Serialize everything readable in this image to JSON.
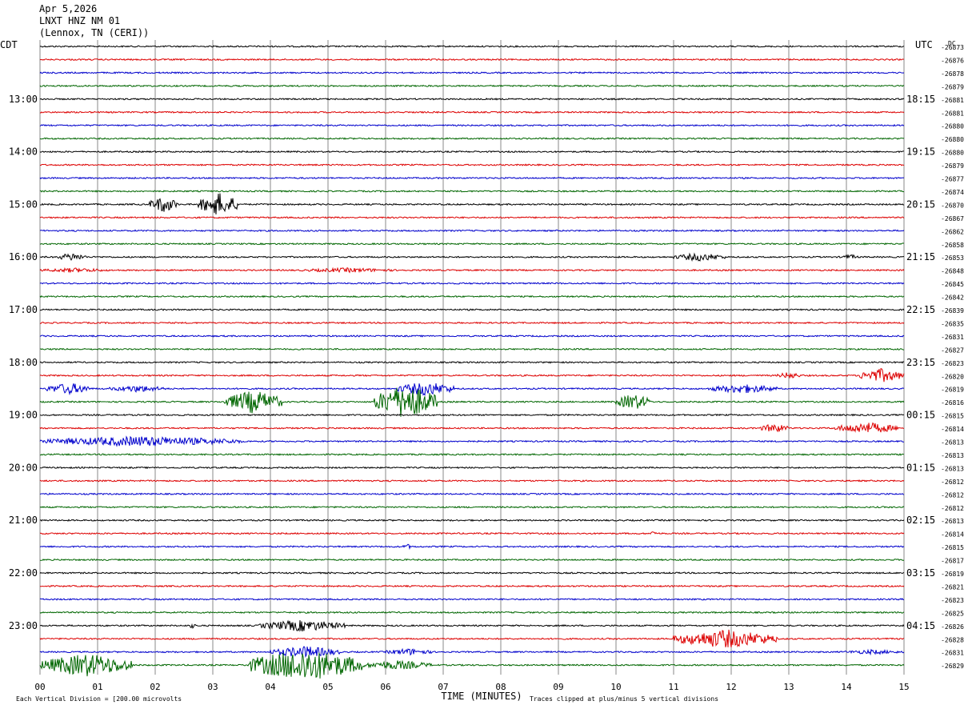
{
  "header": {
    "date": "Apr 5,2026",
    "station": "LNXT HNZ NM 01",
    "location": "(Lennox, TN (CERI))"
  },
  "chart_data": {
    "type": "line",
    "left_tz": "CDT",
    "right_tz": "UTC",
    "dc_label": "DC",
    "xlabel": "TIME (MINUTES)",
    "x_ticks": [
      "00",
      "01",
      "02",
      "03",
      "04",
      "05",
      "06",
      "07",
      "08",
      "09",
      "10",
      "11",
      "12",
      "13",
      "14",
      "15"
    ],
    "xlim": [
      0,
      15
    ],
    "left_time_labels": [
      "13:00",
      "14:00",
      "15:00",
      "16:00",
      "17:00",
      "18:00",
      "19:00",
      "20:00",
      "21:00",
      "22:00",
      "23:00"
    ],
    "right_time_labels": [
      "18:15",
      "19:15",
      "20:15",
      "21:15",
      "22:15",
      "23:15",
      "00:15",
      "01:15",
      "02:15",
      "03:15",
      "04:15"
    ],
    "traces_per_hour": 4,
    "trace_colors": [
      "#000000",
      "#dd0000",
      "#0000cc",
      "#006600"
    ],
    "dc_offsets": [
      "-26873",
      "-26876",
      "-26878",
      "-26879",
      "-26881",
      "-26881",
      "-26880",
      "-26880",
      "-26880",
      "-26879",
      "-26877",
      "-26874",
      "-26870",
      "-26867",
      "-26862",
      "-26858",
      "-26853",
      "-26848",
      "-26845",
      "-26842",
      "-26839",
      "-26835",
      "-26831",
      "-26827",
      "-26823",
      "-26820",
      "-26819",
      "-26816",
      "-26815",
      "-26814",
      "-26813",
      "-26813",
      "-26813",
      "-26812",
      "-26812",
      "-26812",
      "-26813",
      "-26814",
      "-26815",
      "-26817",
      "-26819",
      "-26821",
      "-26823",
      "-26825",
      "-26826",
      "-26828",
      "-26831",
      "-26829"
    ],
    "footer_scale": "Each Vertical Division = [200.00 microvolts",
    "footer_clip": "Traces clipped at plus/minus 5 vertical divisions",
    "events": [
      {
        "trace": 12,
        "start": 1.9,
        "end": 2.4,
        "amp": 0.7
      },
      {
        "trace": 12,
        "start": 2.75,
        "end": 3.45,
        "amp": 1.0
      },
      {
        "trace": 16,
        "start": 0.3,
        "end": 0.8,
        "amp": 0.35
      },
      {
        "trace": 16,
        "start": 11.0,
        "end": 11.9,
        "amp": 0.35
      },
      {
        "trace": 16,
        "start": 13.9,
        "end": 14.2,
        "amp": 0.25
      },
      {
        "trace": 17,
        "start": 0.0,
        "end": 1.2,
        "amp": 0.2
      },
      {
        "trace": 17,
        "start": 4.5,
        "end": 6.2,
        "amp": 0.2
      },
      {
        "trace": 25,
        "start": 12.8,
        "end": 13.2,
        "amp": 0.3
      },
      {
        "trace": 25,
        "start": 14.2,
        "end": 15.0,
        "amp": 0.6
      },
      {
        "trace": 26,
        "start": 0.1,
        "end": 0.9,
        "amp": 0.5
      },
      {
        "trace": 26,
        "start": 1.2,
        "end": 2.2,
        "amp": 0.3
      },
      {
        "trace": 26,
        "start": 6.2,
        "end": 7.2,
        "amp": 0.6
      },
      {
        "trace": 26,
        "start": 11.6,
        "end": 12.8,
        "amp": 0.4
      },
      {
        "trace": 27,
        "start": 3.2,
        "end": 4.2,
        "amp": 1.0
      },
      {
        "trace": 27,
        "start": 5.8,
        "end": 6.9,
        "amp": 1.5
      },
      {
        "trace": 27,
        "start": 10.0,
        "end": 10.6,
        "amp": 0.7
      },
      {
        "trace": 29,
        "start": 12.5,
        "end": 13.0,
        "amp": 0.4
      },
      {
        "trace": 29,
        "start": 13.8,
        "end": 14.9,
        "amp": 0.5
      },
      {
        "trace": 30,
        "start": 0.0,
        "end": 3.5,
        "amp": 0.45
      },
      {
        "trace": 37,
        "start": 10.6,
        "end": 10.7,
        "amp": 0.3
      },
      {
        "trace": 38,
        "start": 6.3,
        "end": 6.45,
        "amp": 0.25
      },
      {
        "trace": 44,
        "start": 2.6,
        "end": 2.7,
        "amp": 0.3
      },
      {
        "trace": 44,
        "start": 3.8,
        "end": 5.3,
        "amp": 0.5
      },
      {
        "trace": 45,
        "start": 11.0,
        "end": 12.8,
        "amp": 0.8
      },
      {
        "trace": 46,
        "start": 4.0,
        "end": 5.2,
        "amp": 0.5
      },
      {
        "trace": 46,
        "start": 6.0,
        "end": 6.8,
        "amp": 0.3
      },
      {
        "trace": 46,
        "start": 13.9,
        "end": 15.0,
        "amp": 0.2
      },
      {
        "trace": 47,
        "start": 0.0,
        "end": 1.6,
        "amp": 1.0
      },
      {
        "trace": 47,
        "start": 3.6,
        "end": 5.6,
        "amp": 1.4
      },
      {
        "trace": 47,
        "start": 5.6,
        "end": 6.8,
        "amp": 0.4
      }
    ]
  }
}
